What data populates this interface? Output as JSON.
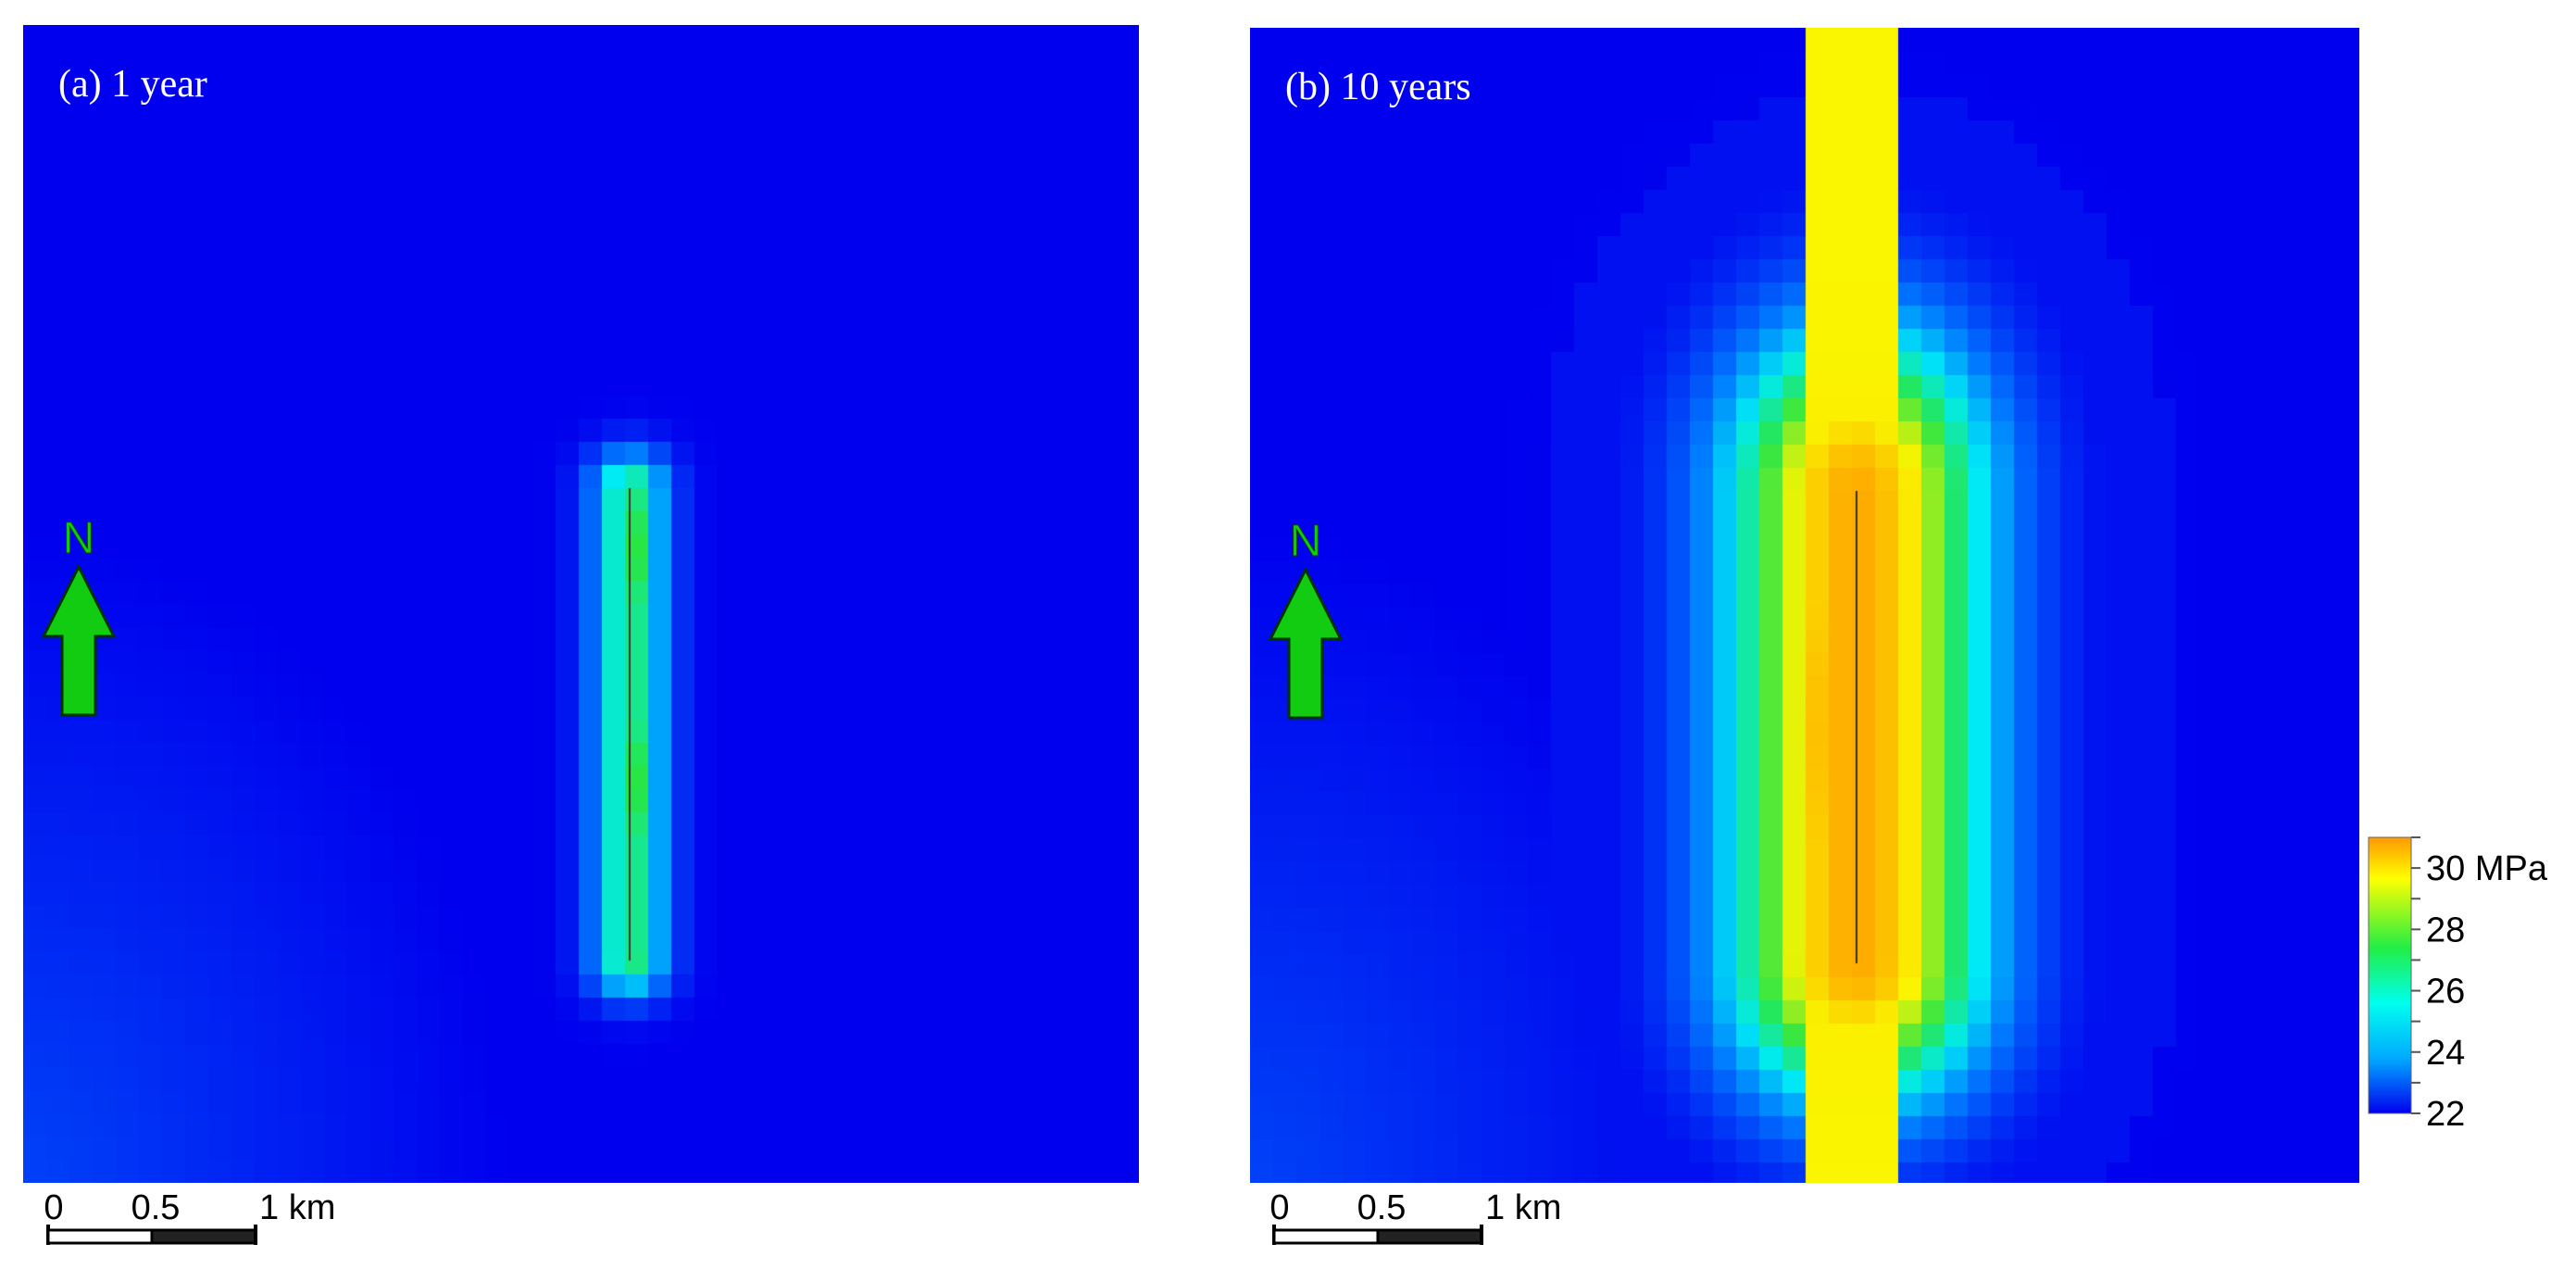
{
  "panels": [
    {
      "title": "(a) 1 year",
      "elapsed_years": 1
    },
    {
      "title": "(b) 10 years",
      "elapsed_years": 10
    }
  ],
  "north_arrow": {
    "label": "N",
    "color": "#11cc11",
    "outline": "#004400"
  },
  "scale_bar": {
    "labels": [
      "0",
      "0.5",
      "1 km"
    ],
    "length_km": 1
  },
  "colorbar": {
    "unit": "MPa",
    "min": 22,
    "max": 31,
    "tick_labels": [
      "22",
      "24",
      "26",
      "28",
      "30 MPa"
    ],
    "tick_values": [
      22,
      24,
      26,
      28,
      30
    ],
    "colors": [
      "#0000ee",
      "#00aaff",
      "#00ffee",
      "#22ee44",
      "#ffff00",
      "#ff9900"
    ]
  },
  "colors": {
    "background_field": "#0000ee",
    "well_line": "#333333"
  }
}
